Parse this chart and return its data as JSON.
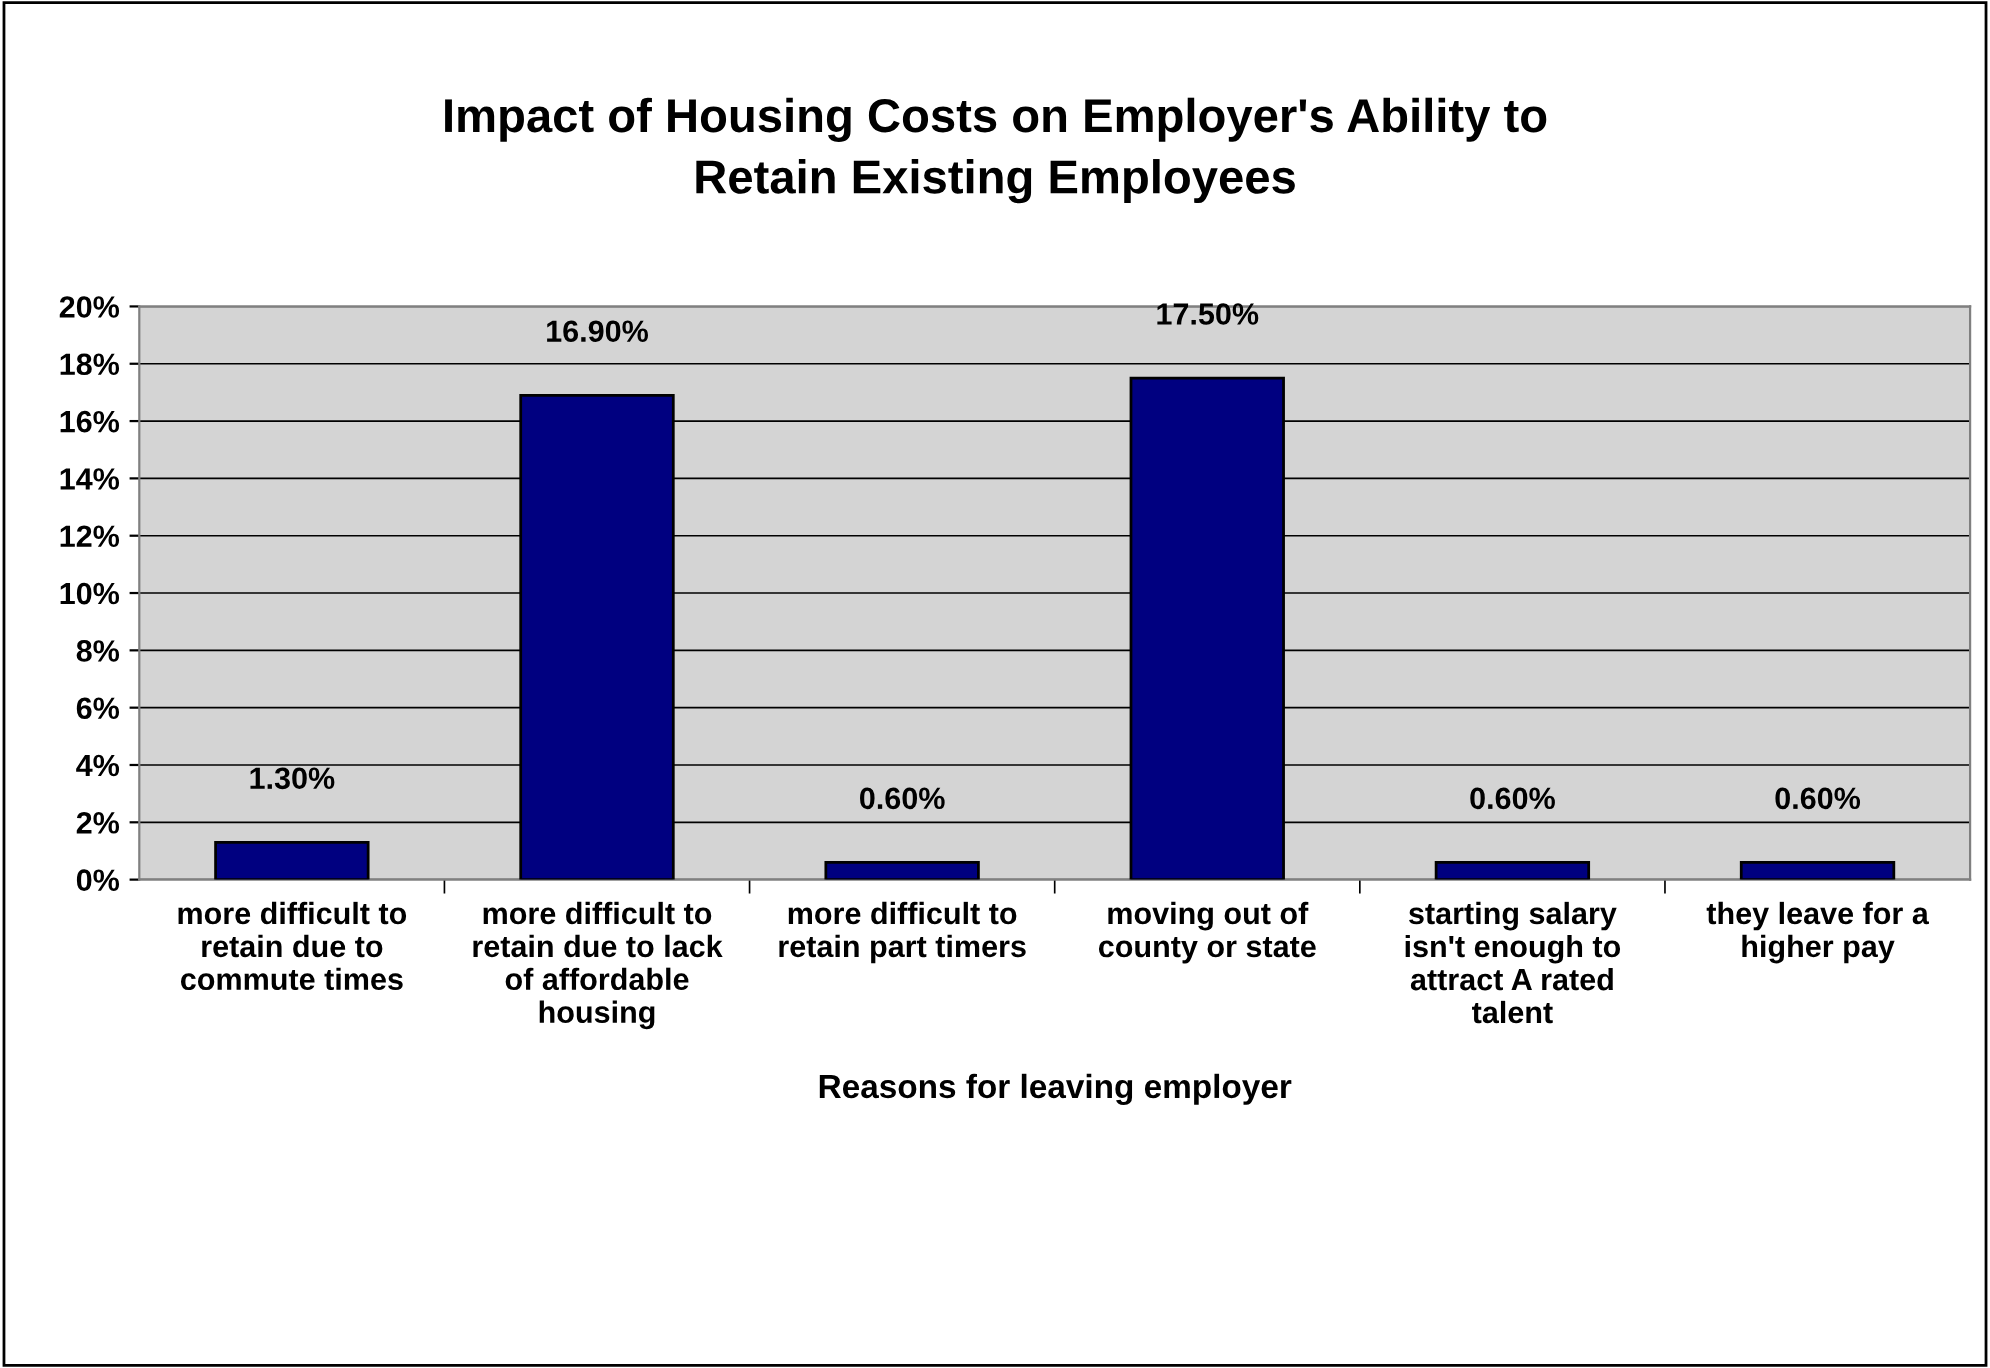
{
  "chart_data": {
    "type": "bar",
    "title": "Impact of Housing Costs on Employer's Ability to Retain Existing Employees",
    "xlabel": "Reasons for leaving employer",
    "categories": [
      "more difficult to retain due to commute times",
      "more difficult to retain due to lack of affordable housing",
      "more difficult to retain part timers",
      "moving out of county or state",
      "starting salary isn't enough to attract A rated talent",
      "they leave for a higher pay"
    ],
    "values": [
      1.3,
      16.9,
      0.6,
      17.5,
      0.6,
      0.6
    ],
    "value_labels": [
      "1.30%",
      "16.90%",
      "0.60%",
      "17.50%",
      "0.60%",
      "0.60%"
    ],
    "color": "#000080",
    "ylim": [
      0,
      20
    ],
    "yticks": [
      {
        "value": 0,
        "label": "0%"
      },
      {
        "value": 2,
        "label": "2%"
      },
      {
        "value": 4,
        "label": "4%"
      },
      {
        "value": 6,
        "label": "6%"
      },
      {
        "value": 8,
        "label": "8%"
      },
      {
        "value": 10,
        "label": "10%"
      },
      {
        "value": 12,
        "label": "12%"
      },
      {
        "value": 14,
        "label": "14%"
      },
      {
        "value": 16,
        "label": "16%"
      },
      {
        "value": 18,
        "label": "18%"
      },
      {
        "value": 20,
        "label": "20%"
      }
    ],
    "grid": "y",
    "legend": false
  }
}
